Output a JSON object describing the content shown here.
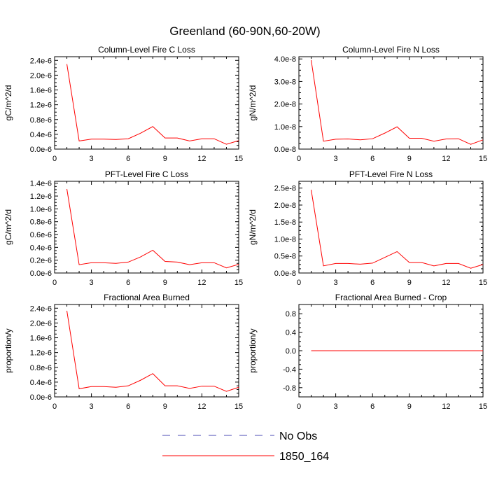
{
  "title": "Greenland (60-90N,60-20W)",
  "chart_data": [
    {
      "type": "line",
      "title": "Column-Level Fire C Loss",
      "ylabel": "gC/m^2/d",
      "xlim": [
        0,
        15
      ],
      "ylim": [
        0,
        2.5e-06
      ],
      "xticks": [
        0,
        3,
        6,
        9,
        12,
        15
      ],
      "xtick_labels": [
        "0",
        "3",
        "6",
        "9",
        "12",
        "15"
      ],
      "yticks": [
        0,
        4e-07,
        8e-07,
        1.2e-06,
        1.6e-06,
        2e-06,
        2.4e-06
      ],
      "ytick_labels": [
        "0.0e-6",
        "0.4e-6",
        "0.8e-6",
        "1.2e-6",
        "1.6e-6",
        "2.0e-6",
        "2.4e-6"
      ],
      "x": [
        1,
        2,
        3,
        4,
        5,
        6,
        7,
        8,
        9,
        10,
        11,
        12,
        13,
        14,
        15
      ],
      "series": [
        {
          "name": "1850_164",
          "color": "#ff0000",
          "values": [
            2.3e-06,
            2.2e-07,
            2.7e-07,
            2.7e-07,
            2.6e-07,
            2.8e-07,
            4.3e-07,
            6.1e-07,
            3e-07,
            3e-07,
            2.2e-07,
            2.8e-07,
            2.8e-07,
            1.3e-07,
            2.3e-07
          ]
        }
      ]
    },
    {
      "type": "line",
      "title": "Column-Level Fire N Loss",
      "ylabel": "gN/m^2/d",
      "xlim": [
        0,
        15
      ],
      "ylim": [
        0,
        4.1e-08
      ],
      "xticks": [
        0,
        3,
        6,
        9,
        12,
        15
      ],
      "xtick_labels": [
        "0",
        "3",
        "6",
        "9",
        "12",
        "15"
      ],
      "yticks": [
        0,
        1e-08,
        2e-08,
        3e-08,
        4e-08
      ],
      "ytick_labels": [
        "0.0e-8",
        "1.0e-8",
        "2.0e-8",
        "3.0e-8",
        "4.0e-8"
      ],
      "x": [
        1,
        2,
        3,
        4,
        5,
        6,
        7,
        8,
        9,
        10,
        11,
        12,
        13,
        14,
        15
      ],
      "series": [
        {
          "name": "1850_164",
          "color": "#ff0000",
          "values": [
            3.95e-08,
            3.5e-09,
            4.4e-09,
            4.5e-09,
            4.1e-09,
            4.6e-09,
            7.1e-09,
            9.9e-09,
            4.8e-09,
            4.8e-09,
            3.5e-09,
            4.5e-09,
            4.6e-09,
            2.1e-09,
            4.1e-09
          ]
        }
      ]
    },
    {
      "type": "line",
      "title": "PFT-Level Fire C Loss",
      "ylabel": "gC/m^2/d",
      "xlim": [
        0,
        15
      ],
      "ylim": [
        0,
        1.43e-06
      ],
      "xticks": [
        0,
        3,
        6,
        9,
        12,
        15
      ],
      "xtick_labels": [
        "0",
        "3",
        "6",
        "9",
        "12",
        "15"
      ],
      "yticks": [
        0,
        2e-07,
        4e-07,
        6e-07,
        8e-07,
        1e-06,
        1.2e-06,
        1.4e-06
      ],
      "ytick_labels": [
        "0.0e-6",
        "0.2e-6",
        "0.4e-6",
        "0.6e-6",
        "0.8e-6",
        "1.0e-6",
        "1.2e-6",
        "1.4e-6"
      ],
      "x": [
        1,
        2,
        3,
        4,
        5,
        6,
        7,
        8,
        9,
        10,
        11,
        12,
        13,
        14,
        15
      ],
      "series": [
        {
          "name": "1850_164",
          "color": "#ff0000",
          "values": [
            1.31e-06,
            1.3e-07,
            1.6e-07,
            1.6e-07,
            1.5e-07,
            1.7e-07,
            2.5e-07,
            3.55e-07,
            1.8e-07,
            1.7e-07,
            1.3e-07,
            1.6e-07,
            1.6e-07,
            8e-08,
            1.35e-07
          ]
        }
      ]
    },
    {
      "type": "line",
      "title": "PFT-Level Fire N Loss",
      "ylabel": "gN/m^2/d",
      "xlim": [
        0,
        15
      ],
      "ylim": [
        0,
        2.7e-08
      ],
      "xticks": [
        0,
        3,
        6,
        9,
        12,
        15
      ],
      "xtick_labels": [
        "0",
        "3",
        "6",
        "9",
        "12",
        "15"
      ],
      "yticks": [
        0,
        5e-09,
        1e-08,
        1.5e-08,
        2e-08,
        2.5e-08
      ],
      "ytick_labels": [
        "0.0e-8",
        "0.5e-8",
        "1.0e-8",
        "1.5e-8",
        "2.0e-8",
        "2.5e-8"
      ],
      "x": [
        1,
        2,
        3,
        4,
        5,
        6,
        7,
        8,
        9,
        10,
        11,
        12,
        13,
        14,
        15
      ],
      "series": [
        {
          "name": "1850_164",
          "color": "#ff0000",
          "values": [
            2.45e-08,
            2.1e-09,
            2.8e-09,
            2.8e-09,
            2.6e-09,
            2.9e-09,
            4.6e-09,
            6.3e-09,
            3.1e-09,
            3.1e-09,
            2.1e-09,
            2.8e-09,
            2.8e-09,
            1.4e-09,
            2.5e-09
          ]
        }
      ]
    },
    {
      "type": "line",
      "title": "Fractional Area Burned",
      "ylabel": "proportion/y",
      "xlim": [
        0,
        15
      ],
      "ylim": [
        0,
        2.5e-06
      ],
      "xticks": [
        0,
        3,
        6,
        9,
        12,
        15
      ],
      "xtick_labels": [
        "0",
        "3",
        "6",
        "9",
        "12",
        "15"
      ],
      "yticks": [
        0,
        4e-07,
        8e-07,
        1.2e-06,
        1.6e-06,
        2e-06,
        2.4e-06
      ],
      "ytick_labels": [
        "0.0e-6",
        "0.4e-6",
        "0.8e-6",
        "1.2e-6",
        "1.6e-6",
        "2.0e-6",
        "2.4e-6"
      ],
      "x": [
        1,
        2,
        3,
        4,
        5,
        6,
        7,
        8,
        9,
        10,
        11,
        12,
        13,
        14,
        15
      ],
      "series": [
        {
          "name": "1850_164",
          "color": "#ff0000",
          "values": [
            2.33e-06,
            2.2e-07,
            2.8e-07,
            2.8e-07,
            2.6e-07,
            3e-07,
            4.5e-07,
            6.3e-07,
            3e-07,
            3e-07,
            2.3e-07,
            2.9e-07,
            2.9e-07,
            1.5e-07,
            2.6e-07
          ]
        }
      ]
    },
    {
      "type": "line",
      "title": "Fractional Area Burned - Crop",
      "ylabel": "proportion/y",
      "xlim": [
        0,
        15
      ],
      "ylim": [
        -1,
        1
      ],
      "xticks": [
        0,
        3,
        6,
        9,
        12,
        15
      ],
      "xtick_labels": [
        "0",
        "3",
        "6",
        "9",
        "12",
        "15"
      ],
      "yticks": [
        -0.8,
        -0.4,
        0,
        0.4,
        0.8
      ],
      "ytick_labels": [
        "-0.8",
        "-0.4",
        "0.0",
        "0.4",
        "0.8"
      ],
      "x": [
        1,
        2,
        3,
        4,
        5,
        6,
        7,
        8,
        9,
        10,
        11,
        12,
        13,
        14,
        15
      ],
      "series": [
        {
          "name": "1850_164",
          "color": "#ff0000",
          "values": [
            0,
            0,
            0,
            0,
            0,
            0,
            0,
            0,
            0,
            0,
            0,
            0,
            0,
            0,
            0
          ]
        }
      ]
    }
  ],
  "legend": [
    {
      "label": "No Obs",
      "color": "#4b4bb4",
      "style": "dashed"
    },
    {
      "label": "1850_164",
      "color": "#ff0000",
      "style": "solid"
    }
  ]
}
